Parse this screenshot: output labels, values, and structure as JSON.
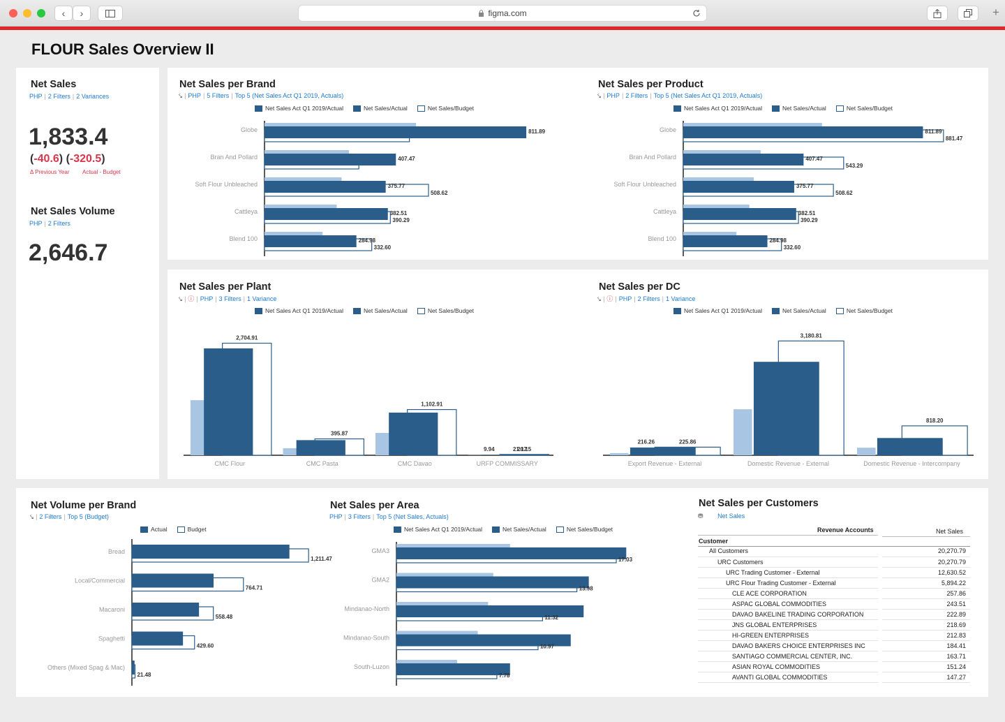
{
  "browser": {
    "url": "figma.com"
  },
  "page": {
    "title": "FLOUR Sales Overview II"
  },
  "colors": {
    "dark": "#2a5d8a",
    "light": "#a8c6e4",
    "accent": "#e0262b",
    "negative": "#d9364a",
    "link": "#1f7ad0"
  },
  "net_sales": {
    "title": "Net Sales",
    "sub": [
      "PHP",
      "2 Filters",
      "2 Variances"
    ],
    "value": "1,833.4",
    "var1": "-40.6",
    "var2": "-320.5",
    "var1_label": "Δ Previous Year",
    "var2_label": "Actual - Budget"
  },
  "net_sales_volume": {
    "title": "Net Sales Volume",
    "sub": [
      "PHP",
      "2 Filters"
    ],
    "value": "2,646.7"
  },
  "legend3": {
    "a": "Net Sales Act Q1 2019/Actual",
    "b": "Net Sales/Actual",
    "c": "Net Sales/Budget"
  },
  "legend2": {
    "a": "Actual",
    "b": "Budget"
  },
  "brand": {
    "title": "Net Sales per Brand",
    "sub": [
      "PHP",
      "5 Filters",
      "Top 5 (Net Sales Act Q1 2019, Actuals)"
    ]
  },
  "product": {
    "title": "Net Sales per Product",
    "sub": [
      "PHP",
      "2 Filters",
      "Top 5 (Net Sales Act Q1 2019, Actuals)"
    ]
  },
  "plant": {
    "title": "Net Sales per Plant",
    "sub": [
      "PHP",
      "3 Filters",
      "1 Variance"
    ]
  },
  "dc": {
    "title": "Net Sales per DC",
    "sub": [
      "PHP",
      "2 Filters",
      "1 Variance"
    ]
  },
  "volume": {
    "title": "Net Volume per Brand",
    "sub": [
      "2 Filters",
      "Top 5 (Budget)"
    ]
  },
  "area": {
    "title": "Net Sales per Area",
    "sub": [
      "PHP",
      "3 Filters",
      "Top 5 (Net Sales, Actuals)"
    ]
  },
  "customers": {
    "title": "Net Sales per Customers",
    "sub": "Net Sales",
    "col_header": "Revenue Accounts",
    "value_header": "Net Sales",
    "row_header": "Customer",
    "rows": [
      {
        "name": "All Customers",
        "value": "20,270.79"
      },
      {
        "name": "URC Customers",
        "value": "20,270.79"
      },
      {
        "name": "URC Trading Customer - External",
        "value": "12,630.52"
      },
      {
        "name": "URC Flour Trading Customer - External",
        "value": "5,894.22"
      },
      {
        "name": "CLE ACE CORPORATION",
        "value": "257.86"
      },
      {
        "name": "ASPAC GLOBAL COMMODITIES",
        "value": "243.51"
      },
      {
        "name": "DAVAO BAKELINE TRADING CORPORATION",
        "value": "222.89"
      },
      {
        "name": "JNS GLOBAL ENTERPRISES",
        "value": "218.69"
      },
      {
        "name": "HI-GREEN ENTERPRISES",
        "value": "212.83"
      },
      {
        "name": "DAVAO BAKERS CHOICE ENTERPRISES INC",
        "value": "184.41"
      },
      {
        "name": "SANTIAGO COMMERCIAL CENTER, INC.",
        "value": "163.71"
      },
      {
        "name": "ASIAN ROYAL COMMODITIES",
        "value": "151.24"
      },
      {
        "name": "AVANTI GLOBAL COMMODITIES",
        "value": "147.27"
      }
    ]
  },
  "chart_data": [
    {
      "id": "brand",
      "type": "bar",
      "orientation": "horizontal",
      "title": "Net Sales per Brand",
      "categories": [
        "Globe",
        "Bran And Pollard",
        "Soft Flour Unbleached",
        "Cattleya",
        "Blend 100"
      ],
      "series": [
        {
          "name": "Net Sales Act Q1 2019/Actual",
          "values": [
            470,
            262,
            239,
            224,
            180
          ]
        },
        {
          "name": "Net Sales/Actual",
          "values": [
            811.89,
            407.47,
            375.77,
            382.51,
            284.98
          ],
          "labels": [
            "811.89",
            "407.47",
            "375.77",
            "382.51",
            "284.98"
          ]
        },
        {
          "name": "Net Sales/Budget",
          "values": [
            449.4,
            292.6,
            508.62,
            390.29,
            332.6
          ],
          "labels": [
            "",
            "",
            "508.62",
            "390.29",
            "332.60"
          ]
        }
      ],
      "xlim": [
        0,
        1000
      ]
    },
    {
      "id": "product",
      "type": "bar",
      "orientation": "horizontal",
      "title": "Net Sales per Product",
      "categories": [
        "Globe",
        "Bran And Pollard",
        "Soft Flour Unbleached",
        "Cattleya",
        "Blend 100"
      ],
      "series": [
        {
          "name": "Net Sales Act Q1 2019/Actual",
          "values": [
            470,
            262,
            239,
            224,
            180
          ]
        },
        {
          "name": "Net Sales/Actual",
          "values": [
            811.89,
            407.47,
            375.77,
            382.51,
            284.98
          ],
          "labels": [
            "811.89",
            "407.47",
            "375.77",
            "382.51",
            "284.98"
          ]
        },
        {
          "name": "Net Sales/Budget",
          "values": [
            881.47,
            543.29,
            508.62,
            390.29,
            332.6
          ],
          "labels": [
            "881.47",
            "543.29",
            "508.62",
            "390.29",
            "332.60"
          ]
        }
      ],
      "xlim": [
        0,
        1000
      ]
    },
    {
      "id": "plant",
      "type": "bar",
      "orientation": "vertical",
      "title": "Net Sales per Plant",
      "categories": [
        "CMC Flour",
        "CMC Pasta",
        "CMC Davao",
        "URFP COMMISSARY"
      ],
      "series": [
        {
          "name": "Net Sales Act Q1 2019/Actual",
          "values": [
            1330,
            170,
            540,
            5
          ]
        },
        {
          "name": "Net Sales/Actual",
          "values": [
            2580,
            365,
            1030,
            9.94
          ],
          "labels": [
            "",
            "",
            "",
            "9.94"
          ]
        },
        {
          "name": "Net Sales/Budget",
          "values": [
            2704.91,
            395.87,
            1102.91,
            20.15
          ],
          "labels": [
            "2,704.91",
            "395.87",
            "1,102.91",
            "20.15"
          ]
        }
      ],
      "ylim": [
        0,
        3000
      ],
      "extra_label": "21.17"
    },
    {
      "id": "dc",
      "type": "bar",
      "orientation": "vertical",
      "title": "Net Sales per DC",
      "categories": [
        "Export Revenue - External",
        "Domestic Revenue - External",
        "Domestic Revenue - Intercompany"
      ],
      "series": [
        {
          "name": "Net Sales Act Q1 2019/Actual",
          "values": [
            60,
            1280,
            210
          ]
        },
        {
          "name": "Net Sales/Actual",
          "values": [
            216.26,
            2600,
            480
          ],
          "labels": [
            "216.26",
            "",
            ""
          ]
        },
        {
          "name": "Net Sales/Budget",
          "values": [
            225.86,
            3180.81,
            818.2
          ],
          "labels": [
            "225.86",
            "3,180.81",
            "818.20"
          ]
        }
      ],
      "ylim": [
        0,
        3400
      ]
    },
    {
      "id": "volume",
      "type": "bar",
      "orientation": "horizontal",
      "title": "Net Volume per Brand",
      "categories": [
        "Bread",
        "Local/Commercial",
        "Macaroni",
        "Spaghetti",
        "Others (Mixed Spag & Mac)"
      ],
      "series": [
        {
          "name": "Actual",
          "values": [
            1080,
            560,
            460,
            350,
            18
          ]
        },
        {
          "name": "Budget",
          "values": [
            1211.47,
            764.71,
            558.48,
            429.6,
            21.48
          ],
          "labels": [
            "1,211.47",
            "764.71",
            "558.48",
            "429.60",
            "21.48"
          ]
        }
      ],
      "xlim": [
        0,
        1450
      ]
    },
    {
      "id": "area",
      "type": "bar",
      "orientation": "horizontal",
      "title": "Net Sales per Area",
      "categories": [
        "GMA3",
        "GMA2",
        "Mindanao-North",
        "Mindanao-South",
        "South-Luzon"
      ],
      "series": [
        {
          "name": "Net Sales Act Q1 2019/Actual",
          "values": [
            8.8,
            7.5,
            7.1,
            6.3,
            4.7
          ]
        },
        {
          "name": "Net Sales/Actual",
          "values": [
            17.8,
            14.9,
            14.5,
            13.5,
            8.8
          ]
        },
        {
          "name": "Net Sales/Budget",
          "values": [
            17.03,
            13.98,
            11.32,
            10.97,
            7.78
          ],
          "labels": [
            "17.03",
            "13.98",
            "11.32",
            "10.97",
            "7.78"
          ]
        }
      ],
      "xlim": [
        0,
        24
      ]
    }
  ]
}
